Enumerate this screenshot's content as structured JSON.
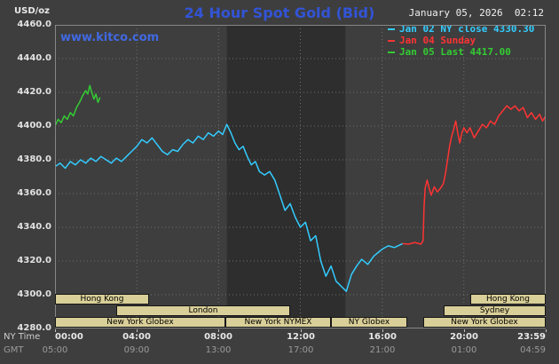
{
  "header": {
    "units_label": "USD/oz",
    "title": "24 Hour Spot Gold (Bid)",
    "datetime": "January 05, 2026  02:12",
    "watermark": "www.kitco.com"
  },
  "legend": {
    "items": [
      {
        "label": "Jan 02 NY close 4330.30",
        "color": "#33ccff"
      },
      {
        "label": "Jan 04 Sunday",
        "color": "#ff3333"
      },
      {
        "label": "Jan 05 Last 4417.00",
        "color": "#33cc33"
      }
    ]
  },
  "axes": {
    "ny_row_label": "NY Time",
    "gmt_row_label": "GMT",
    "y_ticks": [
      {
        "label": "4460.0",
        "value": 4460
      },
      {
        "label": "4440.0",
        "value": 4440
      },
      {
        "label": "4420.0",
        "value": 4420
      },
      {
        "label": "4400.0",
        "value": 4400
      },
      {
        "label": "4380.0",
        "value": 4380
      },
      {
        "label": "4360.0",
        "value": 4360
      },
      {
        "label": "4340.0",
        "value": 4340
      },
      {
        "label": "4320.0",
        "value": 4320
      },
      {
        "label": "4300.0",
        "value": 4300
      },
      {
        "label": "4280.0",
        "value": 4280
      }
    ],
    "ny_ticks": [
      {
        "label": "00:00",
        "hour": 0
      },
      {
        "label": "04:00",
        "hour": 4
      },
      {
        "label": "08:00",
        "hour": 8
      },
      {
        "label": "12:00",
        "hour": 12
      },
      {
        "label": "16:00",
        "hour": 16
      },
      {
        "label": "20:00",
        "hour": 20
      },
      {
        "label": "23:59",
        "hour": 23.98
      }
    ],
    "gmt_ticks": [
      {
        "label": "05:00",
        "hour": 0
      },
      {
        "label": "09:00",
        "hour": 4
      },
      {
        "label": "13:00",
        "hour": 8
      },
      {
        "label": "17:00",
        "hour": 12
      },
      {
        "label": "21:00",
        "hour": 16
      },
      {
        "label": "01:00",
        "hour": 20
      },
      {
        "label": "04:59",
        "hour": 23.98
      }
    ]
  },
  "sessions": {
    "bar_color": "#d9cf98",
    "rows": [
      {
        "segments": [
          {
            "label": "Hong Kong",
            "start": 0,
            "end": 4.6
          },
          {
            "label": "Hong Kong",
            "start": 20.3,
            "end": 24
          }
        ]
      },
      {
        "segments": [
          {
            "label": "London",
            "start": 3.0,
            "end": 11.5
          },
          {
            "label": "Sydney",
            "start": 19.0,
            "end": 24
          }
        ]
      },
      {
        "segments": [
          {
            "label": "New York Globex",
            "start": 0,
            "end": 8.33
          },
          {
            "label": "New York NYMEX",
            "start": 8.33,
            "end": 13.5
          },
          {
            "label": "NY Globex",
            "start": 13.5,
            "end": 17.25
          },
          {
            "label": "New York Globex",
            "start": 18.0,
            "end": 24
          }
        ]
      }
    ]
  },
  "chart_data": {
    "type": "line",
    "title": "24 Hour Spot Gold (Bid)",
    "xlabel": "Time (NY Time / GMT)",
    "ylabel": "USD/oz",
    "x_range": [
      0,
      24
    ],
    "y_range": [
      4280,
      4460
    ],
    "x_gridlines": [
      4,
      8,
      12,
      16,
      20
    ],
    "y_gridlines": [
      4300,
      4320,
      4340,
      4360,
      4380,
      4400,
      4420,
      4440
    ],
    "grid_color": "#6f6f6f",
    "shaded_band": [
      8.4,
      14.2
    ],
    "band_color": "#2e2e2e",
    "legend_position": "top-right",
    "series": [
      {
        "id": "jan02",
        "name": "Jan 02 NY close 4330.30",
        "color": "#33ccff",
        "close_value": 4330.3,
        "points": [
          [
            0,
            4376
          ],
          [
            0.25,
            4378
          ],
          [
            0.5,
            4375
          ],
          [
            0.75,
            4379
          ],
          [
            1,
            4377
          ],
          [
            1.25,
            4380
          ],
          [
            1.5,
            4378
          ],
          [
            1.75,
            4381
          ],
          [
            2,
            4379
          ],
          [
            2.25,
            4382
          ],
          [
            2.5,
            4380
          ],
          [
            2.75,
            4378
          ],
          [
            3,
            4381
          ],
          [
            3.25,
            4379
          ],
          [
            3.5,
            4382
          ],
          [
            3.75,
            4385
          ],
          [
            4,
            4388
          ],
          [
            4.25,
            4392
          ],
          [
            4.5,
            4390
          ],
          [
            4.75,
            4393
          ],
          [
            5,
            4389
          ],
          [
            5.25,
            4385
          ],
          [
            5.5,
            4383
          ],
          [
            5.75,
            4386
          ],
          [
            6,
            4385
          ],
          [
            6.25,
            4389
          ],
          [
            6.5,
            4392
          ],
          [
            6.75,
            4390
          ],
          [
            7,
            4394
          ],
          [
            7.25,
            4392
          ],
          [
            7.5,
            4396
          ],
          [
            7.75,
            4394
          ],
          [
            8,
            4397
          ],
          [
            8.2,
            4395
          ],
          [
            8.4,
            4401
          ],
          [
            8.6,
            4396
          ],
          [
            8.8,
            4390
          ],
          [
            9,
            4386
          ],
          [
            9.2,
            4388
          ],
          [
            9.4,
            4382
          ],
          [
            9.6,
            4377
          ],
          [
            9.8,
            4379
          ],
          [
            10,
            4373
          ],
          [
            10.25,
            4371
          ],
          [
            10.5,
            4373
          ],
          [
            10.75,
            4368
          ],
          [
            11,
            4359
          ],
          [
            11.25,
            4350
          ],
          [
            11.5,
            4354
          ],
          [
            11.75,
            4346
          ],
          [
            12,
            4340
          ],
          [
            12.25,
            4343
          ],
          [
            12.5,
            4332
          ],
          [
            12.75,
            4335
          ],
          [
            13,
            4320
          ],
          [
            13.25,
            4311
          ],
          [
            13.5,
            4317
          ],
          [
            13.75,
            4308
          ],
          [
            14,
            4305
          ],
          [
            14.25,
            4302
          ],
          [
            14.5,
            4312
          ],
          [
            14.75,
            4317
          ],
          [
            15,
            4321
          ],
          [
            15.3,
            4318
          ],
          [
            15.6,
            4323
          ],
          [
            15.8,
            4325
          ],
          [
            16,
            4327
          ],
          [
            16.3,
            4329
          ],
          [
            16.6,
            4328
          ],
          [
            17,
            4330.3
          ]
        ]
      },
      {
        "id": "jan04",
        "name": "Jan 04 Sunday",
        "color": "#ff3333",
        "points": [
          [
            17,
            4330.3
          ],
          [
            17.3,
            4330
          ],
          [
            17.6,
            4331
          ],
          [
            17.9,
            4330
          ],
          [
            18,
            4332
          ],
          [
            18.05,
            4352
          ],
          [
            18.1,
            4363
          ],
          [
            18.2,
            4368
          ],
          [
            18.3,
            4363
          ],
          [
            18.4,
            4359
          ],
          [
            18.55,
            4364
          ],
          [
            18.7,
            4361
          ],
          [
            18.85,
            4363
          ],
          [
            19,
            4366
          ],
          [
            19.1,
            4372
          ],
          [
            19.2,
            4380
          ],
          [
            19.3,
            4388
          ],
          [
            19.4,
            4394
          ],
          [
            19.5,
            4398
          ],
          [
            19.6,
            4403
          ],
          [
            19.7,
            4396
          ],
          [
            19.8,
            4390
          ],
          [
            19.9,
            4396
          ],
          [
            20,
            4399
          ],
          [
            20.15,
            4396
          ],
          [
            20.3,
            4399
          ],
          [
            20.5,
            4393
          ],
          [
            20.7,
            4397
          ],
          [
            20.9,
            4401
          ],
          [
            21.1,
            4399
          ],
          [
            21.3,
            4403
          ],
          [
            21.5,
            4401
          ],
          [
            21.7,
            4406
          ],
          [
            21.9,
            4409
          ],
          [
            22.1,
            4412
          ],
          [
            22.3,
            4410
          ],
          [
            22.5,
            4412
          ],
          [
            22.7,
            4409
          ],
          [
            22.9,
            4411
          ],
          [
            23.1,
            4405
          ],
          [
            23.3,
            4408
          ],
          [
            23.5,
            4404
          ],
          [
            23.7,
            4407
          ],
          [
            23.85,
            4403
          ],
          [
            24,
            4406
          ]
        ]
      },
      {
        "id": "jan05",
        "name": "Jan 05 Last 4417.00",
        "color": "#33cc33",
        "last_value": 4417.0,
        "points": [
          [
            0,
            4400
          ],
          [
            0.15,
            4404
          ],
          [
            0.3,
            4402
          ],
          [
            0.45,
            4406
          ],
          [
            0.6,
            4404
          ],
          [
            0.75,
            4408
          ],
          [
            0.9,
            4406
          ],
          [
            1.05,
            4411
          ],
          [
            1.2,
            4414
          ],
          [
            1.35,
            4418
          ],
          [
            1.5,
            4421
          ],
          [
            1.6,
            4419
          ],
          [
            1.7,
            4424
          ],
          [
            1.8,
            4420
          ],
          [
            1.9,
            4416
          ],
          [
            2,
            4419
          ],
          [
            2.1,
            4414
          ],
          [
            2.2,
            4417
          ]
        ]
      }
    ]
  }
}
